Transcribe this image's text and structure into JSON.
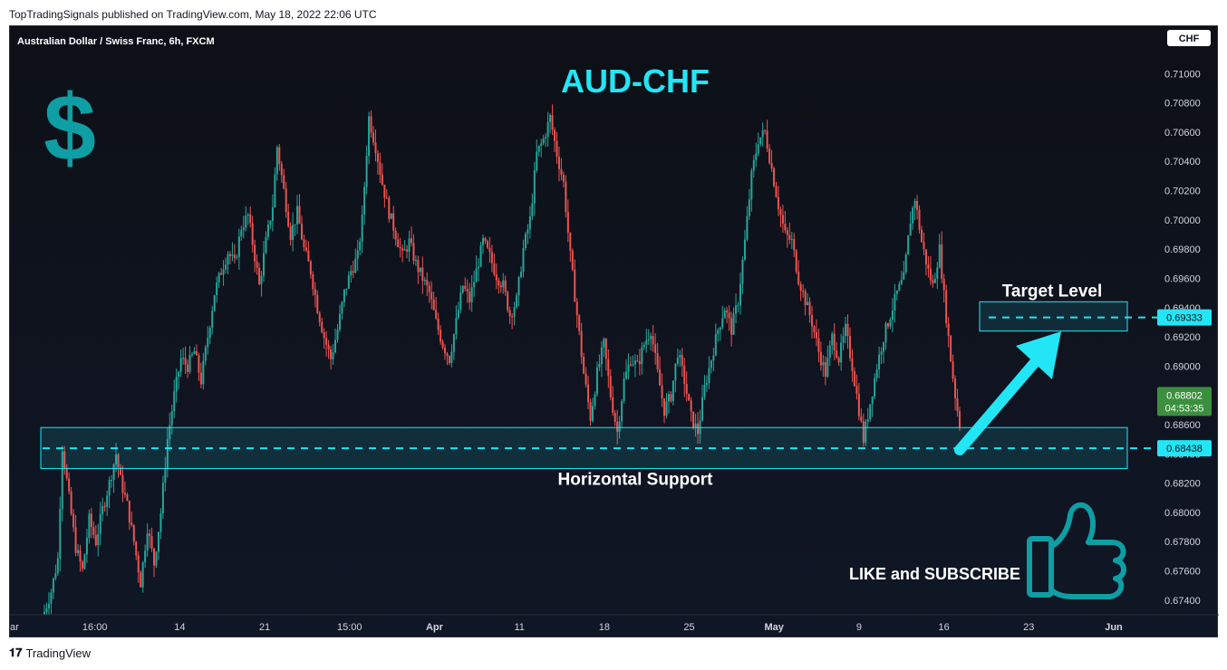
{
  "publisher_line": "TopTradingSignals published on TradingView.com, May 18, 2022 22:06 UTC",
  "footer": {
    "brand": "TradingView"
  },
  "chart_data": {
    "type": "candlestick",
    "symbol_title": "Australian Dollar / Swiss Franc, 6h, FXCM",
    "headline": "AUD-CHF",
    "currency_badge": "CHF",
    "y_axis": {
      "ylim": [
        0.673,
        0.712
      ],
      "ticks": [
        "0.71000",
        "0.70800",
        "0.70600",
        "0.70400",
        "0.70200",
        "0.70000",
        "0.69800",
        "0.69600",
        "0.69400",
        "0.69200",
        "0.69000",
        "0.68800",
        "0.68600",
        "0.68400",
        "0.68200",
        "0.68000",
        "0.67800",
        "0.67600",
        "0.67400"
      ]
    },
    "x_axis": {
      "ticks": [
        "ar",
        "16:00",
        "14",
        "21",
        "15:00",
        "Apr",
        "11",
        "18",
        "25",
        "May",
        "9",
        "16",
        "23",
        "Jun"
      ],
      "bold_ticks": [
        "Apr",
        "May",
        "Jun"
      ]
    },
    "annotations": {
      "target_level": {
        "label": "Target Level",
        "price": 0.69333,
        "price_label": "0.69333",
        "zone": [
          0.6924,
          0.6944
        ]
      },
      "support": {
        "label": "Horizontal Support",
        "price": 0.68438,
        "price_label": "0.68438",
        "zone": [
          0.683,
          0.6858
        ]
      },
      "current_price": {
        "price": 0.68802,
        "price_label": "0.68802",
        "countdown": "04:53:35"
      },
      "cta": "LIKE and SUBSCRIBE"
    },
    "colors": {
      "up": "#26a69a",
      "down": "#ef5350",
      "accent": "#22e5f5",
      "logo": "#0e9ea4",
      "price_badge": "#3c8f3e"
    },
    "icons": [
      "dollar-icon",
      "thumbs-up-icon"
    ],
    "path_points": [
      [
        0,
        0.6732
      ],
      [
        3,
        0.6746
      ],
      [
        6,
        0.6768
      ],
      [
        8,
        0.6845
      ],
      [
        11,
        0.681
      ],
      [
        14,
        0.6776
      ],
      [
        17,
        0.676
      ],
      [
        20,
        0.6795
      ],
      [
        23,
        0.678
      ],
      [
        26,
        0.6802
      ],
      [
        29,
        0.682
      ],
      [
        32,
        0.684
      ],
      [
        34,
        0.6822
      ],
      [
        37,
        0.6805
      ],
      [
        40,
        0.678
      ],
      [
        43,
        0.6752
      ],
      [
        46,
        0.679
      ],
      [
        49,
        0.6765
      ],
      [
        52,
        0.68
      ],
      [
        55,
        0.685
      ],
      [
        58,
        0.688
      ],
      [
        61,
        0.6905
      ],
      [
        64,
        0.69
      ],
      [
        67,
        0.691
      ],
      [
        70,
        0.689
      ],
      [
        73,
        0.692
      ],
      [
        76,
        0.695
      ],
      [
        79,
        0.6965
      ],
      [
        82,
        0.6978
      ],
      [
        85,
        0.697
      ],
      [
        88,
        0.6995
      ],
      [
        91,
        0.7003
      ],
      [
        94,
        0.6975
      ],
      [
        96,
        0.6955
      ],
      [
        99,
        0.6985
      ],
      [
        102,
        0.701
      ],
      [
        104,
        0.705
      ],
      [
        107,
        0.702
      ],
      [
        110,
        0.699
      ],
      [
        113,
        0.7005
      ],
      [
        116,
        0.698
      ],
      [
        119,
        0.6965
      ],
      [
        122,
        0.694
      ],
      [
        125,
        0.692
      ],
      [
        128,
        0.6905
      ],
      [
        131,
        0.6925
      ],
      [
        134,
        0.695
      ],
      [
        137,
        0.6965
      ],
      [
        140,
        0.6975
      ],
      [
        142,
        0.7
      ],
      [
        145,
        0.707
      ],
      [
        148,
        0.705
      ],
      [
        151,
        0.7025
      ],
      [
        154,
        0.7005
      ],
      [
        157,
        0.699
      ],
      [
        160,
        0.6975
      ],
      [
        163,
        0.6985
      ],
      [
        166,
        0.697
      ],
      [
        169,
        0.696
      ],
      [
        172,
        0.695
      ],
      [
        175,
        0.693
      ],
      [
        178,
        0.6915
      ],
      [
        181,
        0.6905
      ],
      [
        184,
        0.693
      ],
      [
        187,
        0.6955
      ],
      [
        190,
        0.6945
      ],
      [
        193,
        0.6965
      ],
      [
        196,
        0.6985
      ],
      [
        199,
        0.6975
      ],
      [
        202,
        0.6962
      ],
      [
        205,
        0.6955
      ],
      [
        208,
        0.6935
      ],
      [
        211,
        0.6945
      ],
      [
        214,
        0.698
      ],
      [
        217,
        0.7
      ],
      [
        220,
        0.7045
      ],
      [
        223,
        0.7055
      ],
      [
        226,
        0.707
      ],
      [
        229,
        0.7045
      ],
      [
        232,
        0.7025
      ],
      [
        235,
        0.6975
      ],
      [
        238,
        0.6935
      ],
      [
        241,
        0.6895
      ],
      [
        244,
        0.6865
      ],
      [
        247,
        0.6895
      ],
      [
        250,
        0.6915
      ],
      [
        253,
        0.688
      ],
      [
        256,
        0.6855
      ],
      [
        259,
        0.689
      ],
      [
        262,
        0.6905
      ],
      [
        265,
        0.69
      ],
      [
        268,
        0.6915
      ],
      [
        271,
        0.6925
      ],
      [
        274,
        0.6895
      ],
      [
        277,
        0.687
      ],
      [
        280,
        0.688
      ],
      [
        283,
        0.691
      ],
      [
        286,
        0.689
      ],
      [
        289,
        0.6865
      ],
      [
        292,
        0.6855
      ],
      [
        295,
        0.6885
      ],
      [
        298,
        0.6905
      ],
      [
        301,
        0.6925
      ],
      [
        304,
        0.694
      ],
      [
        307,
        0.6925
      ],
      [
        310,
        0.6945
      ],
      [
        313,
        0.6985
      ],
      [
        316,
        0.703
      ],
      [
        319,
        0.7055
      ],
      [
        322,
        0.706
      ],
      [
        325,
        0.7035
      ],
      [
        328,
        0.701
      ],
      [
        331,
        0.699
      ],
      [
        334,
        0.6985
      ],
      [
        337,
        0.696
      ],
      [
        340,
        0.6945
      ],
      [
        343,
        0.693
      ],
      [
        346,
        0.691
      ],
      [
        349,
        0.6895
      ],
      [
        352,
        0.692
      ],
      [
        355,
        0.6905
      ],
      [
        358,
        0.6925
      ],
      [
        361,
        0.69
      ],
      [
        364,
        0.687
      ],
      [
        366,
        0.685
      ],
      [
        369,
        0.6875
      ],
      [
        372,
        0.69
      ],
      [
        375,
        0.692
      ],
      [
        378,
        0.6935
      ],
      [
        381,
        0.695
      ],
      [
        384,
        0.696
      ],
      [
        387,
        0.7
      ],
      [
        389,
        0.7015
      ],
      [
        392,
        0.6985
      ],
      [
        395,
        0.6965
      ],
      [
        397,
        0.6955
      ],
      [
        400,
        0.698
      ],
      [
        402,
        0.6948
      ],
      [
        405,
        0.6905
      ],
      [
        407,
        0.688
      ],
      [
        409,
        0.686
      ]
    ]
  }
}
